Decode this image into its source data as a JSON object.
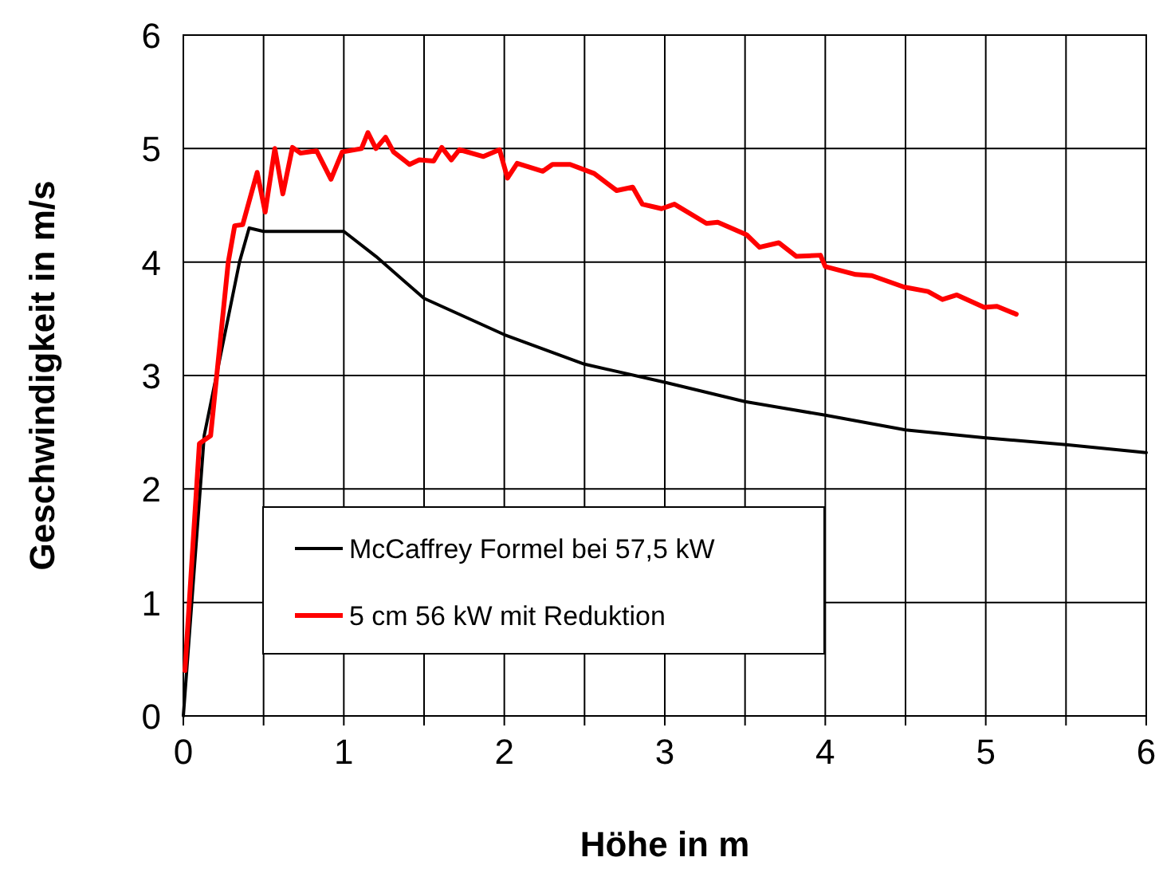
{
  "chart_data": {
    "type": "line",
    "xlabel": "Höhe in m",
    "ylabel": "Geschwindigkeit in m/s",
    "xlim": [
      0,
      6
    ],
    "ylim": [
      0,
      6
    ],
    "xticks": [
      0,
      {
        "value": 0.5,
        "label": null
      },
      1,
      {
        "value": 1.5,
        "label": null
      },
      2,
      {
        "value": 2.5,
        "label": null
      },
      3,
      {
        "value": 3.5,
        "label": null
      },
      4,
      {
        "value": 4.5,
        "label": null
      },
      5,
      {
        "value": 5.5,
        "label": null
      },
      6
    ],
    "yticks": [
      0,
      1,
      2,
      3,
      4,
      5,
      6
    ],
    "grid": true,
    "legend": "left",
    "marker": "none",
    "line_style": "solid",
    "series": [
      {
        "name": "McCaffrey Formel bei 57,5 kW",
        "color": "#000000",
        "x": [
          0,
          0.13,
          0.35,
          0.41,
          0.5,
          1.0,
          1.2,
          1.5,
          2.0,
          2.5,
          3.0,
          3.5,
          4.0,
          4.5,
          5.0,
          5.5,
          6.0
        ],
        "values": [
          0,
          2.47,
          4.0,
          4.3,
          4.27,
          4.27,
          4.05,
          3.68,
          3.36,
          3.1,
          2.94,
          2.77,
          2.65,
          2.52,
          2.45,
          2.39,
          2.32
        ]
      },
      {
        "name": "5 cm 56 kW mit Reduktion",
        "color": "#ff0000",
        "x": [
          0.01,
          0.1,
          0.17,
          0.28,
          0.32,
          0.37,
          0.46,
          0.51,
          0.57,
          0.62,
          0.68,
          0.73,
          0.83,
          0.92,
          0.99,
          1.11,
          1.15,
          1.2,
          1.26,
          1.31,
          1.41,
          1.47,
          1.56,
          1.61,
          1.67,
          1.72,
          1.87,
          1.97,
          2.02,
          2.08,
          2.24,
          2.3,
          2.41,
          2.56,
          2.7,
          2.8,
          2.86,
          2.98,
          3.06,
          3.26,
          3.33,
          3.51,
          3.59,
          3.71,
          3.82,
          3.97,
          4.0,
          4.19,
          4.29,
          4.49,
          4.64,
          4.73,
          4.82,
          4.99,
          5.07,
          5.19
        ],
        "values": [
          0.4,
          2.4,
          2.47,
          4.0,
          4.32,
          4.33,
          4.79,
          4.44,
          5.0,
          4.6,
          5.01,
          4.96,
          4.98,
          4.73,
          4.97,
          5.0,
          5.14,
          5.0,
          5.1,
          4.97,
          4.86,
          4.9,
          4.89,
          5.01,
          4.9,
          4.99,
          4.93,
          4.99,
          4.74,
          4.87,
          4.8,
          4.86,
          4.86,
          4.78,
          4.63,
          4.66,
          4.51,
          4.47,
          4.51,
          4.34,
          4.35,
          4.24,
          4.13,
          4.17,
          4.05,
          4.06,
          3.96,
          3.89,
          3.88,
          3.78,
          3.74,
          3.67,
          3.71,
          3.6,
          3.61,
          3.54
        ]
      }
    ]
  }
}
